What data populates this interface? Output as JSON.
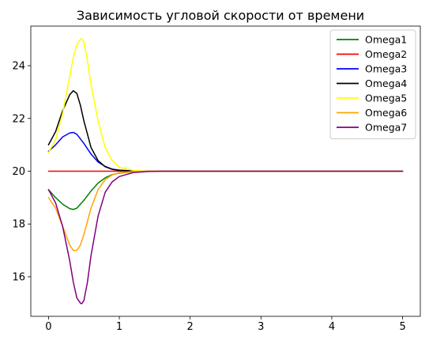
{
  "chart_data": {
    "type": "line",
    "title": "Зависимость угловой скорости от времени",
    "xlabel": "",
    "ylabel": "",
    "xlim": [
      -0.25,
      5.25
    ],
    "ylim": [
      14.5,
      25.5
    ],
    "xticks": [
      0,
      1,
      2,
      3,
      4,
      5
    ],
    "yticks": [
      16,
      18,
      20,
      22,
      24
    ],
    "grid": false,
    "legend_position": "top-right",
    "series": [
      {
        "name": "Omega1",
        "color": "#008000",
        "x": [
          0,
          0.1,
          0.2,
          0.3,
          0.35,
          0.4,
          0.5,
          0.6,
          0.7,
          0.8,
          0.9,
          1.0,
          1.2,
          1.4,
          1.6,
          2.0,
          3.0,
          4.0,
          5.0
        ],
        "y": [
          19.3,
          19.0,
          18.75,
          18.58,
          18.55,
          18.6,
          18.9,
          19.25,
          19.55,
          19.75,
          19.87,
          19.93,
          19.98,
          19.995,
          20.0,
          20.0,
          20.0,
          20.0,
          20.0
        ]
      },
      {
        "name": "Omega2",
        "color": "#ff0000",
        "x": [
          0,
          1,
          2,
          3,
          4,
          5
        ],
        "y": [
          20.0,
          20.0,
          20.0,
          20.0,
          20.0,
          20.0
        ]
      },
      {
        "name": "Omega3",
        "color": "#0000ff",
        "x": [
          0,
          0.1,
          0.2,
          0.3,
          0.35,
          0.4,
          0.5,
          0.6,
          0.7,
          0.8,
          0.9,
          1.0,
          1.2,
          1.4,
          1.6,
          2.0,
          3.0,
          4.0,
          5.0
        ],
        "y": [
          20.75,
          21.0,
          21.3,
          21.45,
          21.47,
          21.4,
          21.05,
          20.65,
          20.35,
          20.18,
          20.08,
          20.04,
          20.01,
          20.0,
          20.0,
          20.0,
          20.0,
          20.0,
          20.0
        ]
      },
      {
        "name": "Omega4",
        "color": "#000000",
        "x": [
          0,
          0.1,
          0.2,
          0.3,
          0.35,
          0.4,
          0.45,
          0.5,
          0.6,
          0.7,
          0.8,
          0.9,
          1.0,
          1.2,
          1.4,
          1.6,
          2.0,
          3.0,
          4.0,
          5.0
        ],
        "y": [
          21.0,
          21.5,
          22.3,
          22.9,
          23.05,
          22.95,
          22.5,
          21.9,
          20.9,
          20.4,
          20.17,
          20.07,
          20.03,
          20.01,
          20.0,
          20.0,
          20.0,
          20.0,
          20.0,
          20.0
        ]
      },
      {
        "name": "Omega5",
        "color": "#ffff00",
        "x": [
          0,
          0.1,
          0.2,
          0.3,
          0.35,
          0.4,
          0.45,
          0.47,
          0.5,
          0.55,
          0.6,
          0.7,
          0.8,
          0.9,
          1.0,
          1.2,
          1.4,
          1.6,
          2.0,
          3.0,
          4.0,
          5.0
        ],
        "y": [
          20.7,
          21.2,
          22.2,
          23.6,
          24.3,
          24.8,
          25.0,
          25.02,
          24.9,
          24.2,
          23.3,
          21.9,
          20.9,
          20.4,
          20.15,
          20.03,
          20.0,
          20.0,
          20.0,
          20.0,
          20.0,
          20.0
        ]
      },
      {
        "name": "Omega6",
        "color": "#ffa500",
        "x": [
          0,
          0.1,
          0.2,
          0.3,
          0.35,
          0.4,
          0.45,
          0.5,
          0.6,
          0.7,
          0.8,
          0.9,
          1.0,
          1.2,
          1.4,
          1.6,
          2.0,
          3.0,
          4.0,
          5.0
        ],
        "y": [
          19.0,
          18.6,
          17.9,
          17.2,
          17.0,
          17.0,
          17.2,
          17.6,
          18.6,
          19.3,
          19.68,
          19.86,
          19.94,
          19.99,
          20.0,
          20.0,
          20.0,
          20.0,
          20.0,
          20.0
        ]
      },
      {
        "name": "Omega7",
        "color": "#800080",
        "x": [
          0,
          0.1,
          0.2,
          0.3,
          0.35,
          0.4,
          0.45,
          0.47,
          0.5,
          0.55,
          0.6,
          0.7,
          0.8,
          0.9,
          1.0,
          1.2,
          1.4,
          1.6,
          2.0,
          3.0,
          4.0,
          5.0
        ],
        "y": [
          19.3,
          18.8,
          17.9,
          16.6,
          15.8,
          15.2,
          15.0,
          14.98,
          15.1,
          15.8,
          16.8,
          18.3,
          19.2,
          19.6,
          19.8,
          19.95,
          19.99,
          20.0,
          20.0,
          20.0,
          20.0,
          20.0
        ]
      }
    ]
  }
}
